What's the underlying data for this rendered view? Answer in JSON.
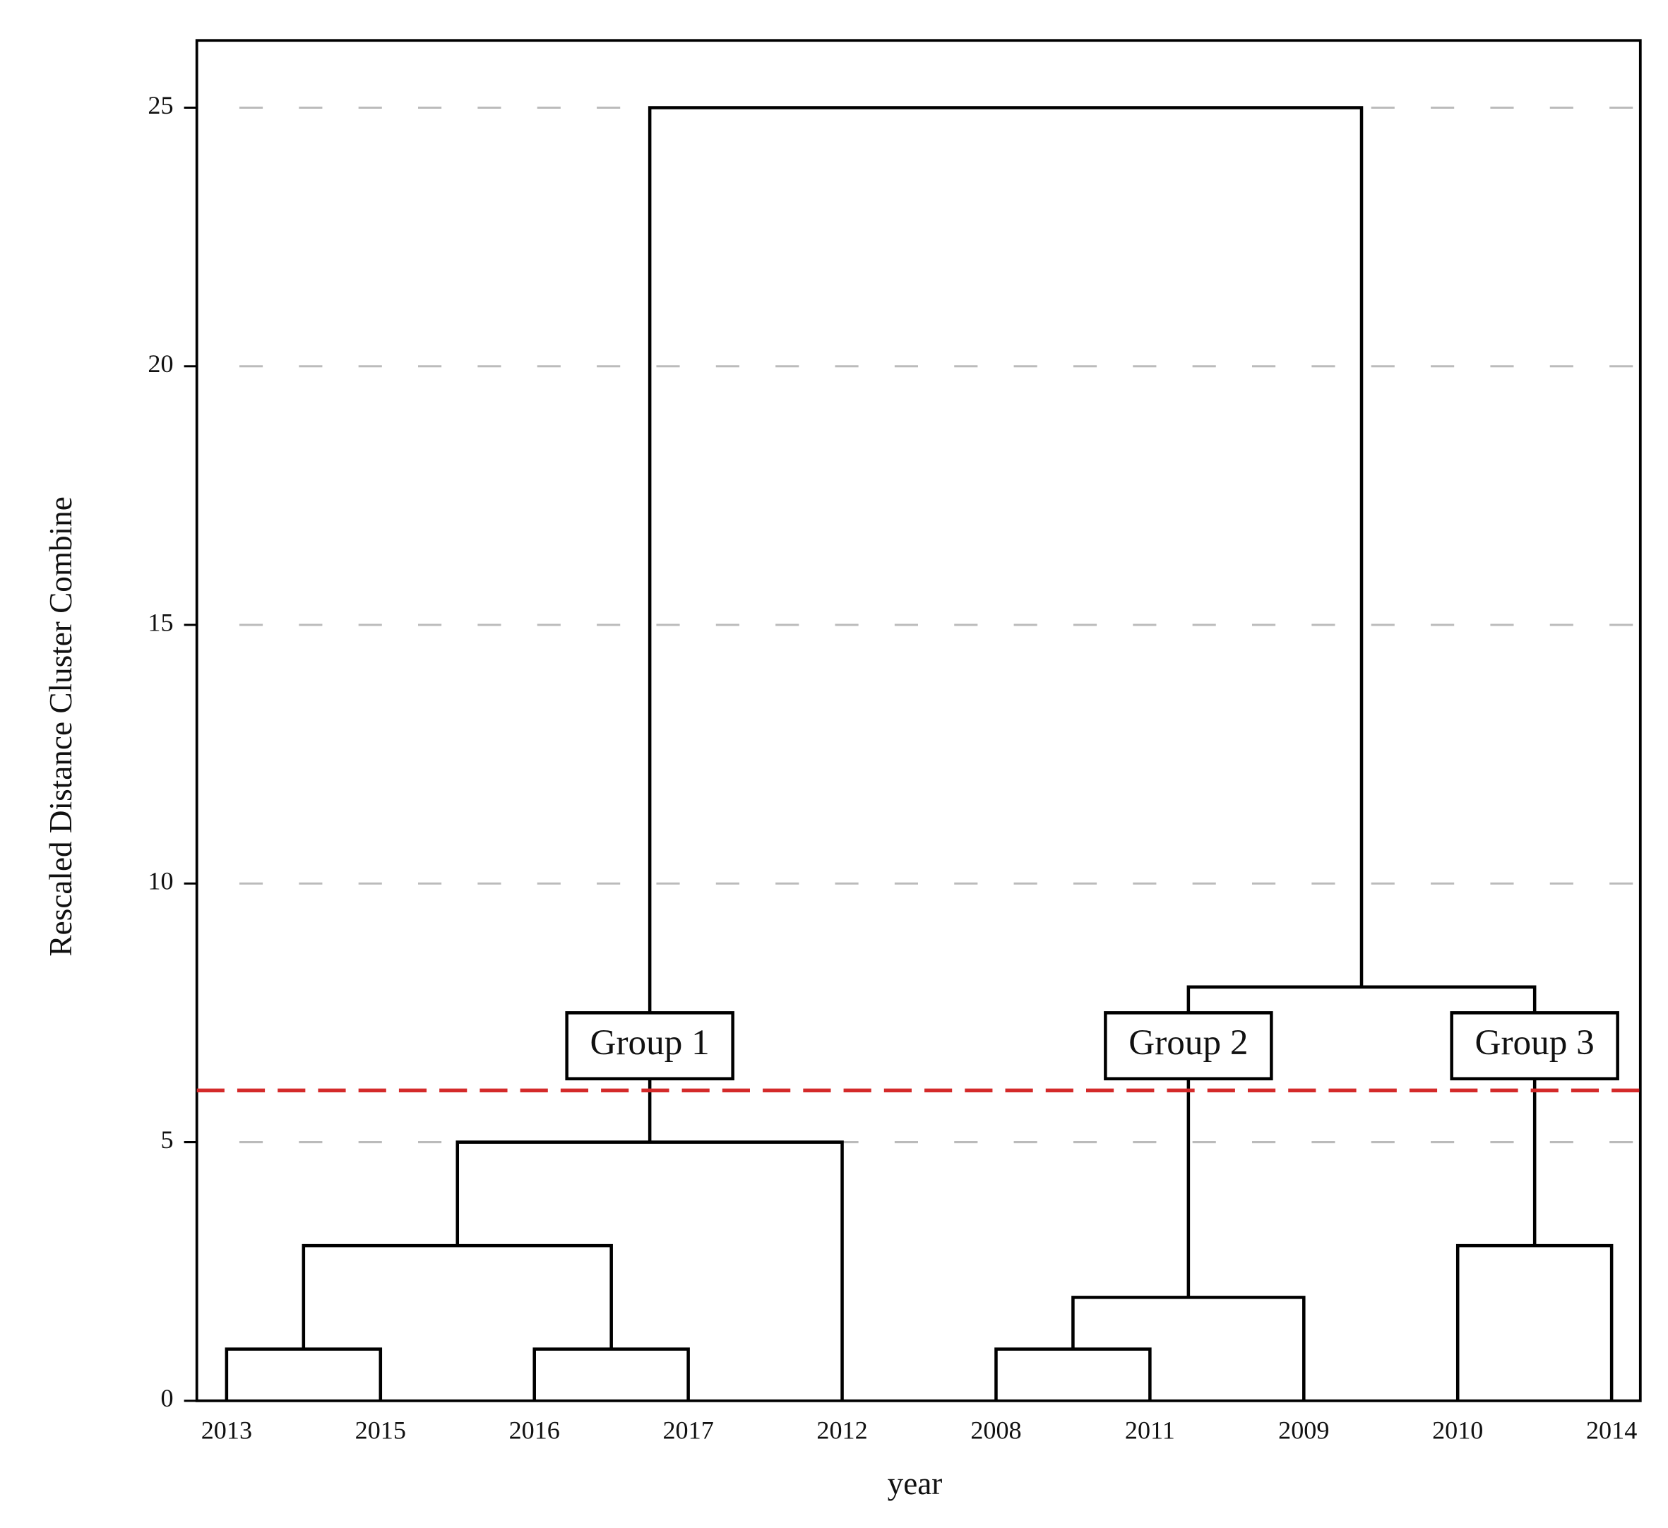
{
  "chart_data": {
    "type": "dendrogram",
    "x_label": "year",
    "y_label": "Rescaled Distance Cluster Combine",
    "leaves": [
      "2013",
      "2015",
      "2016",
      "2017",
      "2012",
      "2008",
      "2011",
      "2009",
      "2010",
      "2014"
    ],
    "merges": [
      {
        "left": 0,
        "right": 1,
        "height": 1
      },
      {
        "left": 2,
        "right": 3,
        "height": 1
      },
      {
        "left": 5,
        "right": 6,
        "height": 1
      },
      {
        "left": 12,
        "right": 7,
        "height": 2
      },
      {
        "left": 8,
        "right": 9,
        "height": 3
      },
      {
        "left": 10,
        "right": 11,
        "height": 3
      },
      {
        "left": 15,
        "right": 4,
        "height": 5
      },
      {
        "left": 13,
        "right": 14,
        "height": 8
      },
      {
        "left": 16,
        "right": 17,
        "height": 25
      }
    ],
    "cut_height": 6,
    "cut_color": "#d42a2a",
    "groups": [
      {
        "label": "Group 1",
        "cluster": 16
      },
      {
        "label": "Group 2",
        "cluster": 13
      },
      {
        "label": "Group 3",
        "cluster": 14
      }
    ],
    "ylim": [
      0,
      26.3
    ],
    "yticks": [
      0,
      5,
      10,
      15,
      20,
      25
    ],
    "grid": true,
    "color": "#000000"
  }
}
